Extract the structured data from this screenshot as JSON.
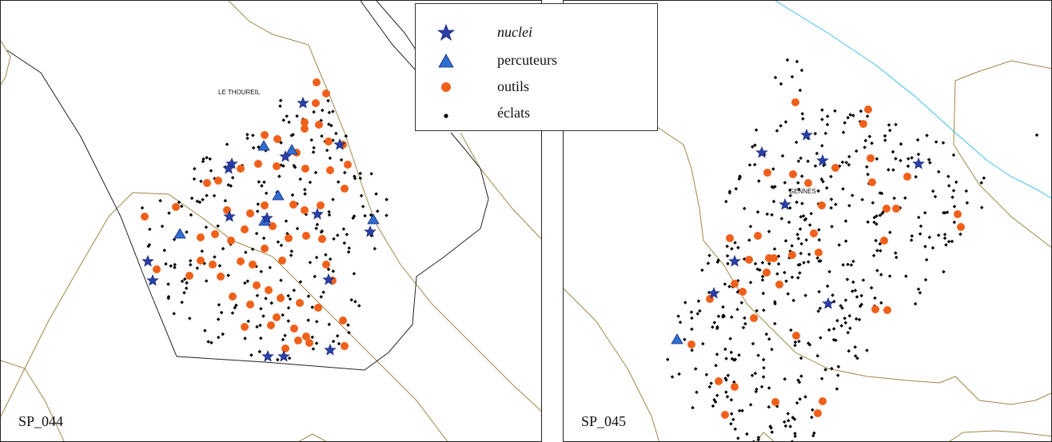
{
  "legend": {
    "items": [
      {
        "label": "nuclei",
        "symbol": "star",
        "italic": true
      },
      {
        "label": "percuteurs",
        "symbol": "triangle",
        "italic": false
      },
      {
        "label": "outils",
        "symbol": "circle",
        "italic": false
      },
      {
        "label": "éclats",
        "symbol": "dot",
        "italic": false
      }
    ]
  },
  "maps": [
    {
      "id": "SP_044",
      "label": "SP_044",
      "place": "LE THOUREIL"
    },
    {
      "id": "SP_045",
      "label": "SP_045",
      "place": "GENNES"
    }
  ],
  "colors": {
    "nuclei": "#2b3fa8",
    "percuteurs": "#2f6fd0",
    "outils": "#f0601a",
    "eclats": "#000000",
    "contour": "#a0874a",
    "river": "#3fc2e8",
    "zone": "#222222"
  }
}
